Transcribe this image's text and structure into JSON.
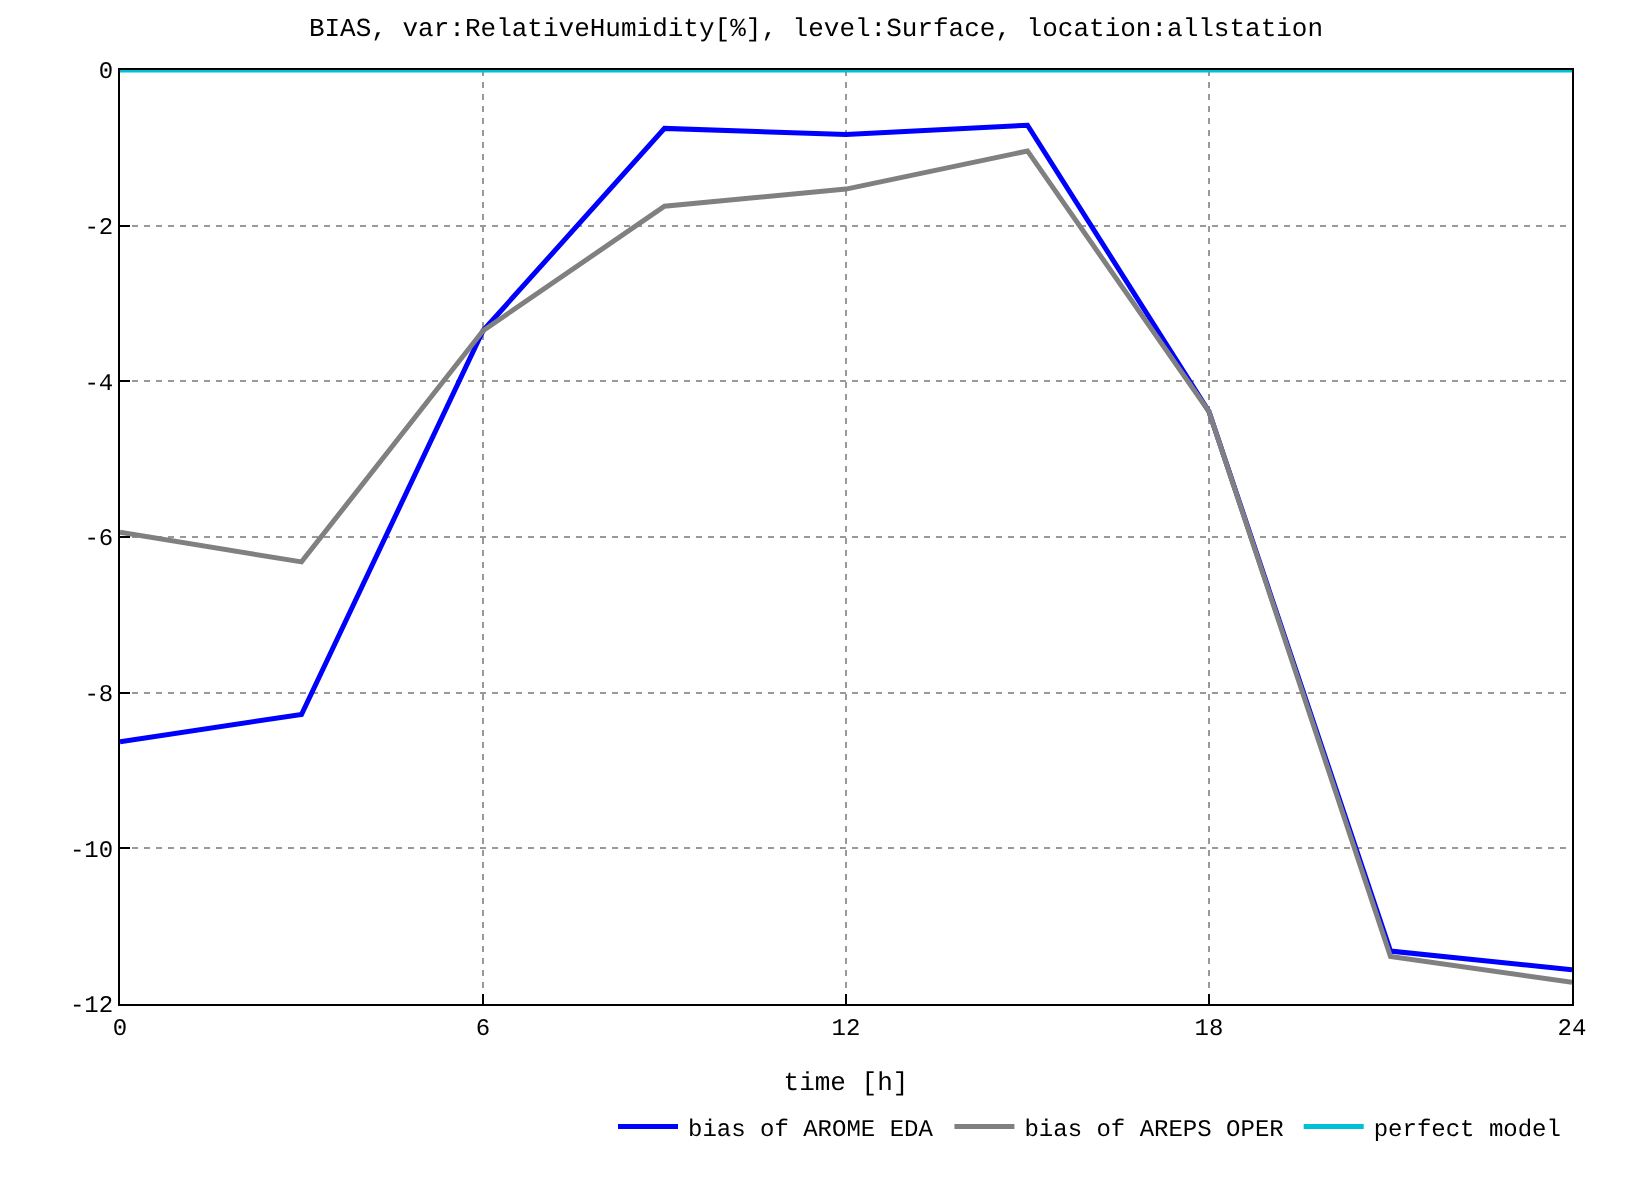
{
  "chart_data": {
    "type": "line",
    "title": "BIAS, var:RelativeHumidity[%], level:Surface, location:allstation",
    "xlabel": "time [h]",
    "x": [
      0,
      3,
      6,
      9,
      12,
      15,
      18,
      21,
      24
    ],
    "series": [
      {
        "name": "bias of AROME EDA",
        "color": "#0000ff",
        "values": [
          -8.63,
          -8.28,
          -3.35,
          -0.75,
          -0.83,
          -0.71,
          -4.39,
          -11.32,
          -11.56
        ]
      },
      {
        "name": "bias of AREPS OPER",
        "color": "#808080",
        "values": [
          -5.94,
          -6.32,
          -3.35,
          -1.75,
          -1.53,
          -1.04,
          -4.39,
          -11.39,
          -11.72
        ]
      },
      {
        "name": "perfect model",
        "color": "#00bfd8",
        "values": [
          0,
          0,
          0,
          0,
          0,
          0,
          0,
          0,
          0
        ]
      }
    ],
    "xlim": [
      0,
      24
    ],
    "xticks": [
      0,
      6,
      12,
      18,
      24
    ],
    "ylim": [
      -12,
      0
    ],
    "yticks": [
      -12,
      -10,
      -8,
      -6,
      -4,
      -2,
      0
    ],
    "grid": true,
    "legend": "bottom right",
    "marker": "none",
    "line_style": "solid"
  }
}
